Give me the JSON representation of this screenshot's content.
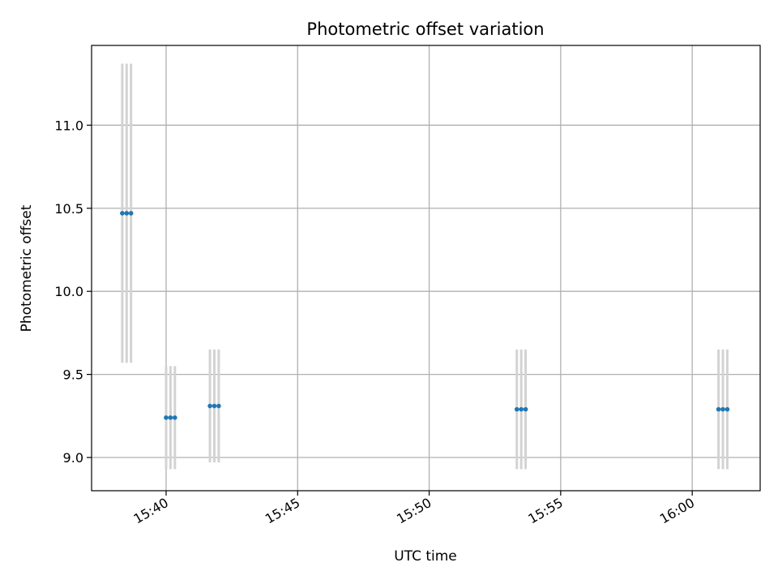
{
  "chart_data": {
    "type": "scatter",
    "title": "Photometric offset variation",
    "xlabel": "UTC time",
    "ylabel": "Photometric offset",
    "x_axis": {
      "kind": "time",
      "range": [
        "15:37:10",
        "16:02:35"
      ],
      "ticks": [
        "15:40",
        "15:45",
        "15:50",
        "15:55",
        "16:00"
      ]
    },
    "y_axis": {
      "range": [
        8.8,
        11.48
      ],
      "ticks": [
        9.0,
        9.5,
        10.0,
        10.5,
        11.0
      ],
      "tick_labels": [
        "9.0",
        "9.5",
        "10.0",
        "10.5",
        "11.0"
      ]
    },
    "grid": true,
    "colors": {
      "marker": "#1f77b4",
      "errorbar": "#d3d3d3",
      "grid": "#b0b0b0",
      "axis": "#000000"
    },
    "series": [
      {
        "points": [
          {
            "t": "15:38:20",
            "y": 10.47,
            "err": 0.9
          },
          {
            "t": "15:38:30",
            "y": 10.47,
            "err": 0.9
          },
          {
            "t": "15:38:40",
            "y": 10.47,
            "err": 0.9
          },
          {
            "t": "15:40:00",
            "y": 9.24,
            "err": 0.31
          },
          {
            "t": "15:40:10",
            "y": 9.24,
            "err": 0.31
          },
          {
            "t": "15:40:20",
            "y": 9.24,
            "err": 0.31
          },
          {
            "t": "15:41:40",
            "y": 9.31,
            "err": 0.34
          },
          {
            "t": "15:41:50",
            "y": 9.31,
            "err": 0.34
          },
          {
            "t": "15:42:00",
            "y": 9.31,
            "err": 0.34
          },
          {
            "t": "15:53:20",
            "y": 9.29,
            "err": 0.36
          },
          {
            "t": "15:53:30",
            "y": 9.29,
            "err": 0.36
          },
          {
            "t": "15:53:40",
            "y": 9.29,
            "err": 0.36
          },
          {
            "t": "16:01:00",
            "y": 9.29,
            "err": 0.36
          },
          {
            "t": "16:01:10",
            "y": 9.29,
            "err": 0.36
          },
          {
            "t": "16:01:20",
            "y": 9.29,
            "err": 0.36
          }
        ]
      }
    ]
  }
}
